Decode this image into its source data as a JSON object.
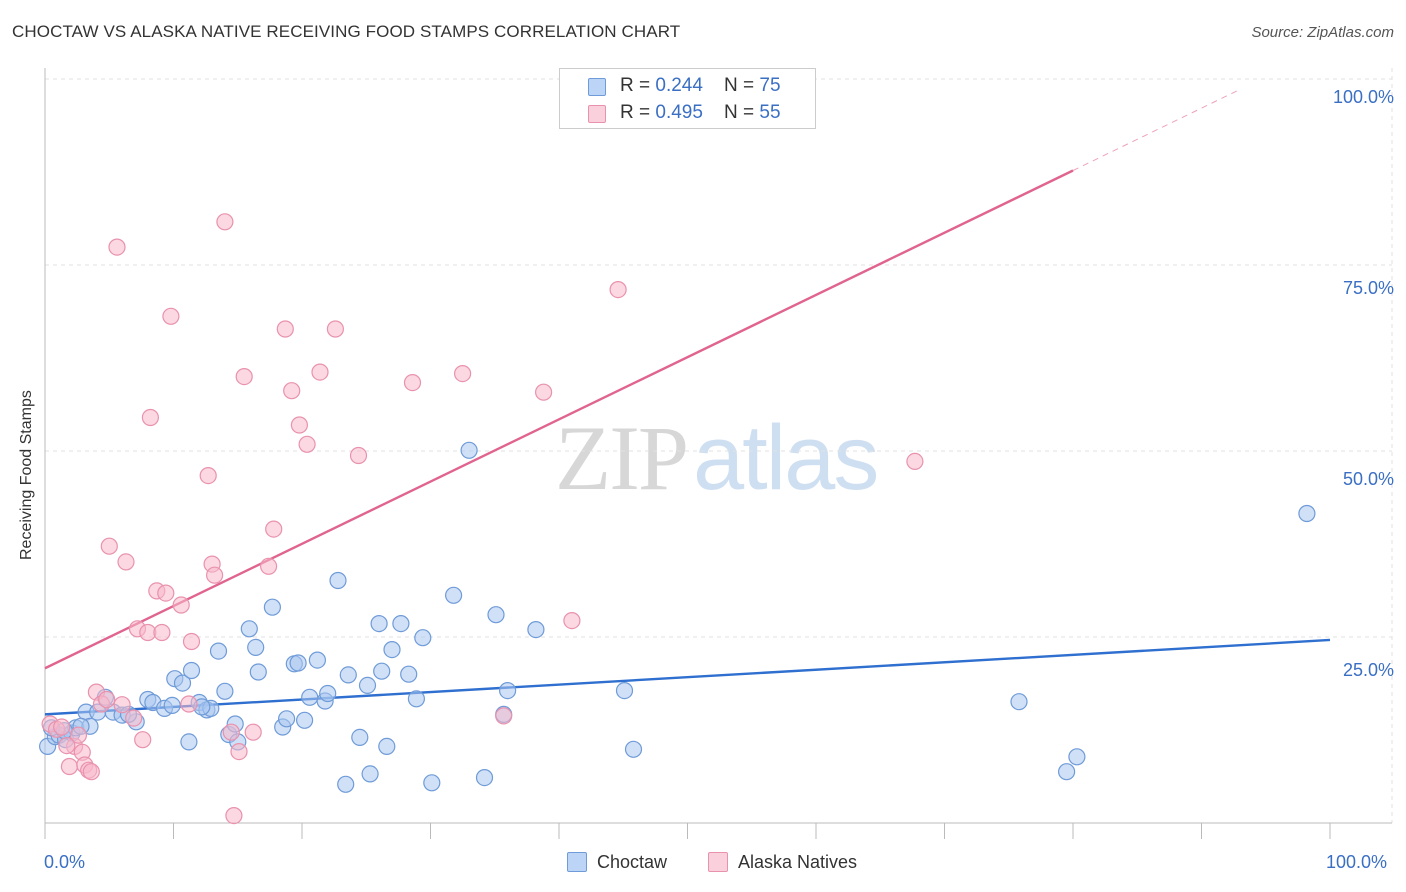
{
  "title": "CHOCTAW VS ALASKA NATIVE RECEIVING FOOD STAMPS CORRELATION CHART",
  "source": "Source: ZipAtlas.com",
  "watermark": {
    "zip": "ZIP",
    "atlas": "atlas"
  },
  "colors": {
    "choctaw_fill": "#a9c7f0",
    "choctaw_stroke": "#6f9bd8",
    "choctaw_line": "#2f6fcf",
    "alaska_fill": "#f7b8cb",
    "alaska_stroke": "#e992ad",
    "alaska_line": "#e0648f",
    "axis_text": "#3a6fc4",
    "grid": "#e2e2e2"
  },
  "legend": {
    "choctaw": {
      "r_label": "R = ",
      "r_value": "0.244",
      "n_label": "N = ",
      "n_value": "75"
    },
    "alaska": {
      "r_label": "R = ",
      "r_value": "0.495",
      "n_label": "N = ",
      "n_value": "55"
    }
  },
  "chart_data": {
    "type": "scatter",
    "title": "CHOCTAW VS ALASKA NATIVE RECEIVING FOOD STAMPS CORRELATION CHART",
    "xlabel": "",
    "ylabel": "Receiving Food Stamps",
    "xlim": [
      0,
      100
    ],
    "ylim": [
      0,
      100
    ],
    "x_tick_labels": [
      "0.0%",
      "100.0%"
    ],
    "y_ticks": [
      25,
      50,
      75,
      100
    ],
    "y_tick_labels": [
      "25.0%",
      "50.0%",
      "75.0%",
      "100.0%"
    ],
    "grid": "horizontal dashed",
    "legend_position": "top-center",
    "series": [
      {
        "name": "Choctaw",
        "R": 0.244,
        "N": 75,
        "trend": {
          "x": [
            0,
            100
          ],
          "y": [
            14.6,
            24.6
          ]
        },
        "points": [
          [
            0.2,
            10.3
          ],
          [
            0.8,
            11.6
          ],
          [
            1.1,
            11.8
          ],
          [
            1.6,
            11.2
          ],
          [
            2.1,
            12.1
          ],
          [
            2.4,
            12.8
          ],
          [
            3.2,
            14.9
          ],
          [
            3.5,
            13.0
          ],
          [
            4.1,
            14.9
          ],
          [
            4.7,
            16.9
          ],
          [
            5.3,
            14.9
          ],
          [
            6.0,
            14.5
          ],
          [
            7.1,
            13.6
          ],
          [
            8.0,
            16.6
          ],
          [
            8.4,
            16.2
          ],
          [
            9.3,
            15.4
          ],
          [
            9.9,
            15.8
          ],
          [
            10.1,
            19.4
          ],
          [
            10.7,
            18.8
          ],
          [
            11.2,
            10.9
          ],
          [
            11.4,
            20.5
          ],
          [
            12.0,
            16.2
          ],
          [
            12.6,
            15.2
          ],
          [
            12.9,
            15.4
          ],
          [
            13.5,
            23.1
          ],
          [
            14.0,
            17.7
          ],
          [
            14.3,
            11.9
          ],
          [
            14.8,
            13.3
          ],
          [
            15.0,
            10.9
          ],
          [
            15.9,
            26.1
          ],
          [
            16.4,
            23.6
          ],
          [
            16.6,
            20.3
          ],
          [
            17.7,
            29.0
          ],
          [
            18.5,
            12.9
          ],
          [
            18.8,
            14.0
          ],
          [
            19.4,
            21.4
          ],
          [
            19.7,
            21.5
          ],
          [
            20.2,
            13.8
          ],
          [
            21.2,
            21.9
          ],
          [
            21.8,
            16.4
          ],
          [
            22.0,
            17.4
          ],
          [
            22.8,
            32.6
          ],
          [
            23.4,
            5.2
          ],
          [
            23.6,
            19.9
          ],
          [
            24.5,
            11.5
          ],
          [
            25.3,
            6.6
          ],
          [
            26.0,
            26.8
          ],
          [
            26.2,
            20.4
          ],
          [
            26.6,
            10.3
          ],
          [
            27.0,
            23.3
          ],
          [
            27.7,
            26.8
          ],
          [
            28.3,
            20.0
          ],
          [
            28.9,
            16.7
          ],
          [
            29.4,
            24.9
          ],
          [
            30.1,
            5.4
          ],
          [
            31.8,
            30.6
          ],
          [
            33.0,
            50.1
          ],
          [
            34.2,
            6.1
          ],
          [
            35.1,
            28.0
          ],
          [
            35.7,
            14.6
          ],
          [
            36.0,
            17.8
          ],
          [
            38.2,
            26.0
          ],
          [
            45.1,
            17.8
          ],
          [
            45.8,
            9.9
          ],
          [
            75.8,
            16.3
          ],
          [
            79.5,
            6.9
          ],
          [
            80.3,
            8.9
          ],
          [
            98.2,
            41.6
          ],
          [
            0.5,
            12.8
          ],
          [
            1.5,
            12.4
          ],
          [
            2.8,
            13.0
          ],
          [
            6.5,
            14.6
          ],
          [
            12.2,
            15.6
          ],
          [
            20.6,
            16.9
          ],
          [
            25.1,
            18.5
          ]
        ]
      },
      {
        "name": "Alaska Natives",
        "R": 0.495,
        "N": 55,
        "trend": {
          "x": [
            0,
            80
          ],
          "y": [
            20.8,
            87.7
          ]
        },
        "trend_dashed": {
          "x": [
            80,
            93
          ],
          "y": [
            87.7,
            98.6
          ]
        },
        "points": [
          [
            0.4,
            13.3
          ],
          [
            0.9,
            12.6
          ],
          [
            1.3,
            12.9
          ],
          [
            1.9,
            7.6
          ],
          [
            2.3,
            10.3
          ],
          [
            2.6,
            11.8
          ],
          [
            2.9,
            9.5
          ],
          [
            3.1,
            7.8
          ],
          [
            3.4,
            7.1
          ],
          [
            3.6,
            6.9
          ],
          [
            4.0,
            17.6
          ],
          [
            4.4,
            16.0
          ],
          [
            4.8,
            16.6
          ],
          [
            5.0,
            37.2
          ],
          [
            5.6,
            77.4
          ],
          [
            6.0,
            15.9
          ],
          [
            6.3,
            35.1
          ],
          [
            6.9,
            14.1
          ],
          [
            7.2,
            26.1
          ],
          [
            7.6,
            11.2
          ],
          [
            8.0,
            25.6
          ],
          [
            8.2,
            54.5
          ],
          [
            8.7,
            31.2
          ],
          [
            9.1,
            25.6
          ],
          [
            9.4,
            30.9
          ],
          [
            9.8,
            68.1
          ],
          [
            10.6,
            29.3
          ],
          [
            11.2,
            16.0
          ],
          [
            11.4,
            24.4
          ],
          [
            12.7,
            46.7
          ],
          [
            13.0,
            34.8
          ],
          [
            13.2,
            33.3
          ],
          [
            14.0,
            80.8
          ],
          [
            14.5,
            12.2
          ],
          [
            14.7,
            1.0
          ],
          [
            15.1,
            9.6
          ],
          [
            15.5,
            60.0
          ],
          [
            16.2,
            12.2
          ],
          [
            17.4,
            34.5
          ],
          [
            17.8,
            39.5
          ],
          [
            18.7,
            66.4
          ],
          [
            19.2,
            58.1
          ],
          [
            19.8,
            53.5
          ],
          [
            20.4,
            50.9
          ],
          [
            21.4,
            60.6
          ],
          [
            22.6,
            66.4
          ],
          [
            24.4,
            49.4
          ],
          [
            28.6,
            59.2
          ],
          [
            32.5,
            60.4
          ],
          [
            35.7,
            14.4
          ],
          [
            38.8,
            57.9
          ],
          [
            41.0,
            27.2
          ],
          [
            44.6,
            71.7
          ],
          [
            67.7,
            48.6
          ],
          [
            1.7,
            10.4
          ]
        ]
      }
    ]
  },
  "legend_bottom": {
    "choctaw": "Choctaw",
    "alaska": "Alaska Natives"
  }
}
